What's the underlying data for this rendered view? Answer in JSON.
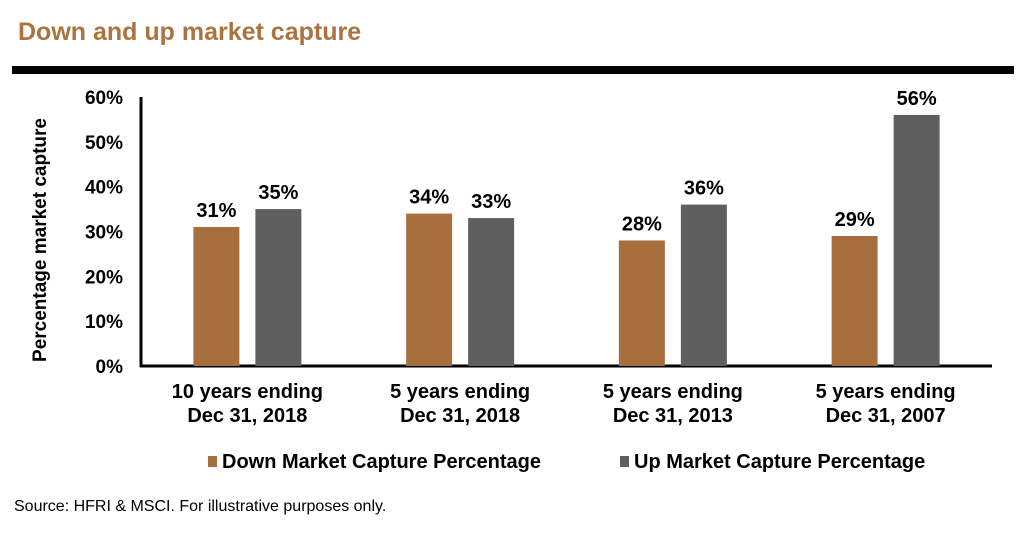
{
  "header": {
    "title": "Down and up market capture"
  },
  "chart_data": {
    "type": "bar",
    "title": "Down and up market capture",
    "ylabel": "Percentage market capture",
    "xlabel": "",
    "ylim": [
      0,
      60
    ],
    "yticks": [
      "0%",
      "10%",
      "20%",
      "30%",
      "40%",
      "50%",
      "60%"
    ],
    "categories": [
      [
        "10 years ending",
        "Dec 31, 2018"
      ],
      [
        "5 years ending",
        "Dec 31, 2018"
      ],
      [
        "5 years ending",
        "Dec 31, 2013"
      ],
      [
        "5 years ending",
        "Dec 31, 2007"
      ]
    ],
    "series": [
      {
        "name": "Down Market Capture Percentage",
        "color": "#a86f3e",
        "values": [
          31,
          34,
          28,
          29
        ],
        "labels": [
          "31%",
          "34%",
          "28%",
          "29%"
        ]
      },
      {
        "name": "Up Market Capture Percentage",
        "color": "#5f5f5f",
        "values": [
          35,
          33,
          36,
          56
        ],
        "labels": [
          "35%",
          "33%",
          "36%",
          "56%"
        ]
      }
    ],
    "grid": false,
    "legend": "bottom"
  },
  "footer": {
    "source": "Source: HFRI & MSCI. For illustrative purposes only."
  }
}
